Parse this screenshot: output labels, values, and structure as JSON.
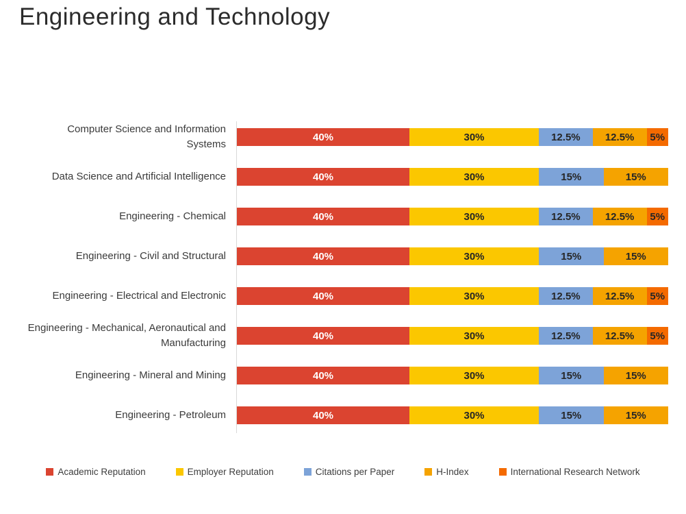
{
  "title": "Engineering and Technology",
  "chart_data": {
    "type": "bar",
    "orientation": "horizontal",
    "stacked": true,
    "value_unit": "%",
    "xlim": [
      0,
      100
    ],
    "grid": false,
    "legend_position": "bottom",
    "bar_label_format": "{value}%",
    "categories": [
      "Computer Science and Information Systems",
      "Data Science and Artificial Intelligence",
      "Engineering - Chemical",
      "Engineering - Civil and Structural",
      "Engineering - Electrical and Electronic",
      "Engineering - Mechanical, Aeronautical and Manufacturing",
      "Engineering - Mineral and Mining",
      "Engineering - Petroleum"
    ],
    "series": [
      {
        "name": "Academic Reputation",
        "color": "#db4430",
        "values": [
          40,
          40,
          40,
          40,
          40,
          40,
          40,
          40
        ]
      },
      {
        "name": "Employer Reputation",
        "color": "#fbc700",
        "values": [
          30,
          30,
          30,
          30,
          30,
          30,
          30,
          30
        ]
      },
      {
        "name": "Citations per Paper",
        "color": "#7da3d8",
        "values": [
          12.5,
          15,
          12.5,
          15,
          12.5,
          12.5,
          15,
          15
        ]
      },
      {
        "name": "H-Index",
        "color": "#f5a300",
        "values": [
          12.5,
          15,
          12.5,
          15,
          12.5,
          12.5,
          15,
          15
        ]
      },
      {
        "name": "International Research Network",
        "color": "#f46a00",
        "values": [
          5,
          0,
          5,
          0,
          5,
          5,
          0,
          0
        ]
      }
    ]
  },
  "colors": {
    "background": "#ffffff",
    "title": "#2b2b2b",
    "axis_line": "#d9d9d9",
    "category_label": "#3a3a3a",
    "legend_label": "#3d3d3d",
    "bar_label_on_red": "#ffffff",
    "bar_label_default": "#262626"
  }
}
